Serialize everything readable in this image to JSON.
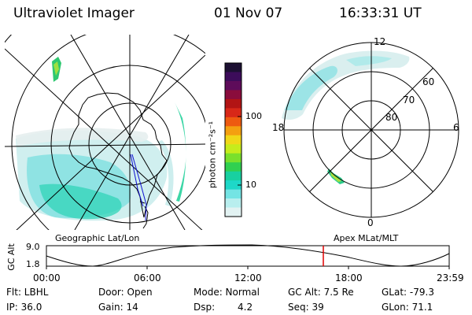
{
  "header": {
    "instrument": "Ultraviolet Imager",
    "date": "01 Nov 07",
    "time": "16:33:31 UT"
  },
  "colorbar": {
    "label": "photon cm⁻²s⁻¹",
    "tick_labels": [
      "100",
      "10"
    ],
    "colors": [
      "#1c1032",
      "#3c0c5a",
      "#5e0c5a",
      "#8a0c3c",
      "#b21414",
      "#d82818",
      "#ee5a10",
      "#f4a010",
      "#f0d818",
      "#c6ec1c",
      "#7ae02c",
      "#30d050",
      "#18d0a0",
      "#1ed8c8",
      "#74e4e4",
      "#b8eeee",
      "#e2f2f2"
    ]
  },
  "left_panel": {
    "caption": "Geographic Lat/Lon"
  },
  "right_panel": {
    "caption": "Apex  MLat/MLT",
    "mlt_labels": {
      "top": "12",
      "bottom": "0",
      "left": "18",
      "right": "6"
    },
    "lat_labels": [
      "60",
      "70",
      "80"
    ]
  },
  "timeline": {
    "y_axis_label": "GC Alt",
    "y_ticks": [
      "9.0",
      "1.8"
    ],
    "x_ticks": [
      "00:00",
      "06:00",
      "12:00",
      "18:00",
      "23:59"
    ],
    "marker_color": "#e00000"
  },
  "status": {
    "flt": "Flt: LBHL",
    "ip": "IP: 36.0",
    "door": "Door: Open",
    "gain": "Gain: 14",
    "mode": "Mode: Normal",
    "dsp_label": "Dsp:",
    "dsp_value": "4.2",
    "gcalt": "GC Alt: 7.5 Re",
    "seq": "Seq: 39",
    "glat": "GLat: -79.3",
    "glon": "GLon:  71.1"
  }
}
